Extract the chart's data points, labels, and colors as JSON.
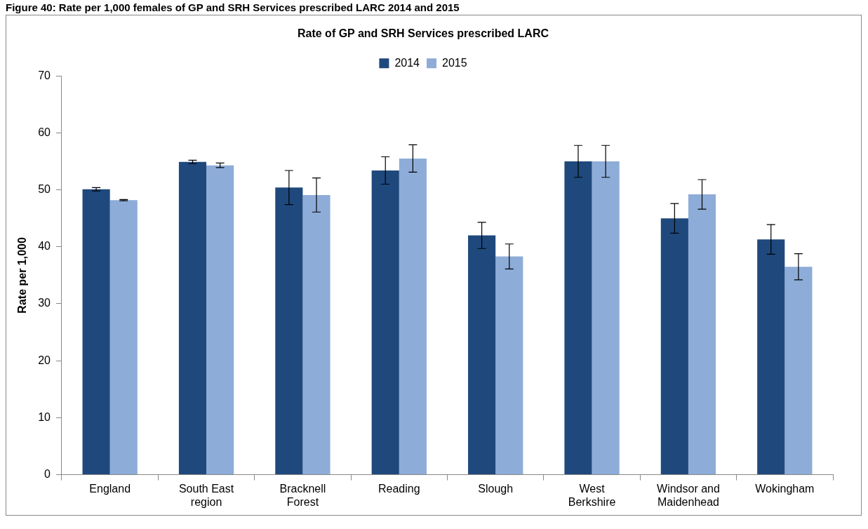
{
  "chart_data": {
    "type": "bar",
    "title": "Rate of GP and SRH Services prescribed LARC",
    "annotations": [
      "Figure 40: Rate per 1,000 females of GP and SRH Services prescribed LARC 2014 and 2015"
    ],
    "ylabel": "Rate per 1,000",
    "categories": [
      [
        "England"
      ],
      [
        "South East",
        "region"
      ],
      [
        "Bracknell",
        "Forest"
      ],
      [
        "Reading"
      ],
      [
        "Slough"
      ],
      [
        "West",
        "Berkshire"
      ],
      [
        "Windsor and",
        "Maidenhead"
      ],
      [
        "Wokingham"
      ]
    ],
    "series": [
      {
        "name": "2014",
        "color": "#1f497d",
        "values": [
          50.1,
          54.9,
          50.4,
          53.4,
          42.0,
          55.0,
          45.0,
          41.3
        ],
        "errors": [
          0.3,
          0.3,
          3.0,
          2.4,
          2.3,
          2.8,
          2.6,
          2.6
        ]
      },
      {
        "name": "2015",
        "color": "#8eacd8",
        "values": [
          48.2,
          54.3,
          49.1,
          55.5,
          38.3,
          55.0,
          49.2,
          36.5
        ],
        "errors": [
          0.1,
          0.4,
          3.0,
          2.4,
          2.2,
          2.8,
          2.6,
          2.3
        ]
      }
    ],
    "ylim": [
      0,
      70
    ],
    "yticks": [
      0,
      10,
      20,
      30,
      40,
      50,
      60,
      70
    ],
    "grid": false,
    "legend": "top"
  }
}
